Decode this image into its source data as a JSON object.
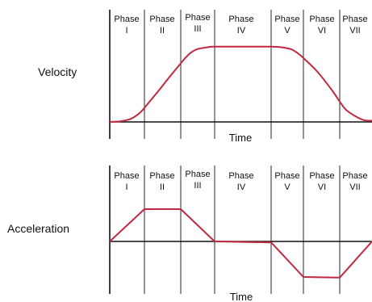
{
  "chart_data": [
    {
      "type": "line",
      "title": "",
      "ylabel": "Velocity",
      "xlabel": "Time",
      "phases": [
        {
          "name": "Phase",
          "numeral": "I"
        },
        {
          "name": "Phase",
          "numeral": "II"
        },
        {
          "name": "Phase",
          "numeral": "III"
        },
        {
          "name": "Phase",
          "numeral": "IV"
        },
        {
          "name": "Phase",
          "numeral": "V"
        },
        {
          "name": "Phase",
          "numeral": "VI"
        },
        {
          "name": "Phase",
          "numeral": "VII"
        }
      ],
      "phase_boundaries": [
        0,
        1,
        2,
        3,
        4,
        5,
        6,
        7
      ],
      "xlim": [
        0,
        7
      ],
      "ylim": [
        -0.3,
        1.65
      ],
      "series": [
        {
          "color": "#c0283f",
          "x": [
            0,
            0.3,
            0.6,
            0.8,
            0.95,
            1.1,
            1.4,
            1.7,
            2.0,
            2.15,
            2.3,
            2.5,
            2.8,
            3.0,
            3.5,
            4.0,
            4.3,
            4.6,
            4.8,
            5.0,
            5.4,
            5.8,
            6.0,
            6.2,
            6.5,
            6.75,
            7.0
          ],
          "y": [
            0.0,
            0.01,
            0.05,
            0.12,
            0.2,
            0.31,
            0.53,
            0.76,
            0.98,
            1.08,
            1.16,
            1.22,
            1.25,
            1.26,
            1.26,
            1.26,
            1.25,
            1.22,
            1.16,
            1.07,
            0.83,
            0.52,
            0.34,
            0.2,
            0.09,
            0.03,
            0.02
          ]
        }
      ]
    },
    {
      "type": "line",
      "title": "",
      "ylabel": "Acceleration",
      "xlabel": "Time",
      "phases": [
        {
          "name": "Phase",
          "numeral": "I"
        },
        {
          "name": "Phase",
          "numeral": "II"
        },
        {
          "name": "Phase",
          "numeral": "III"
        },
        {
          "name": "Phase",
          "numeral": "IV"
        },
        {
          "name": "Phase",
          "numeral": "V"
        },
        {
          "name": "Phase",
          "numeral": "VI"
        },
        {
          "name": "Phase",
          "numeral": "VII"
        }
      ],
      "phase_boundaries": [
        0,
        1,
        2,
        3,
        4,
        5,
        6,
        7
      ],
      "xlim": [
        0,
        7
      ],
      "ylim": [
        -1.2,
        1.55
      ],
      "series": [
        {
          "color": "#c0283f",
          "x": [
            0,
            1,
            2,
            3,
            4,
            5,
            6,
            7
          ],
          "y": [
            0,
            1,
            1,
            0,
            -0.03,
            -1.1,
            -1.12,
            0
          ]
        }
      ]
    }
  ]
}
